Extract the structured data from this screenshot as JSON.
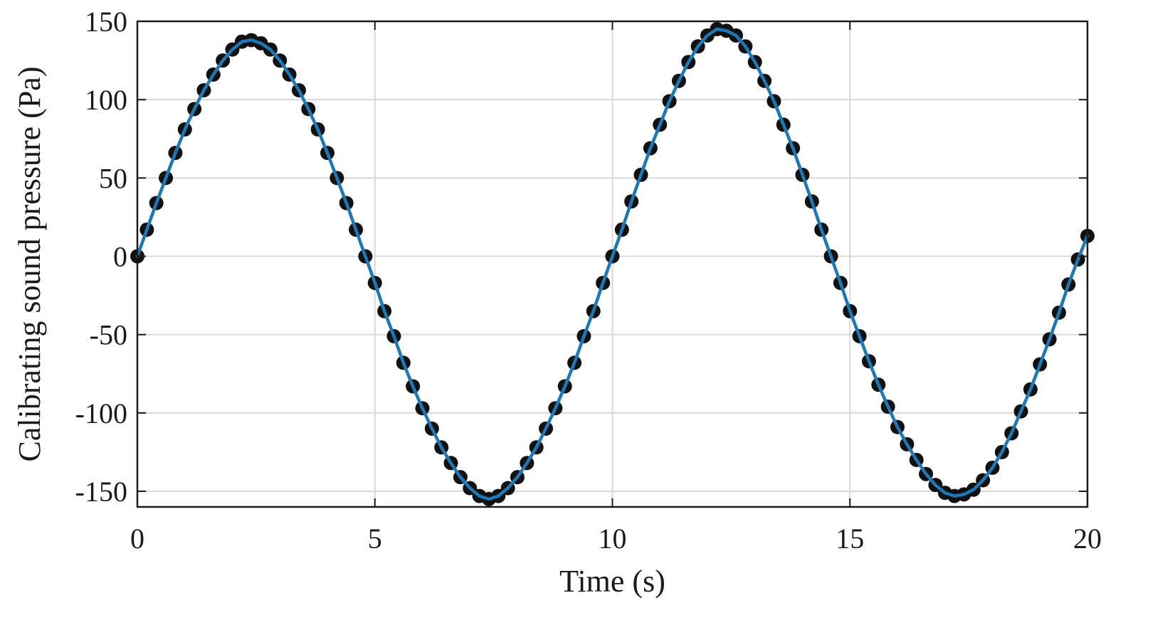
{
  "chart_data": {
    "type": "line",
    "title": "",
    "xlabel": "Time (s)",
    "ylabel": "Calibrating sound pressure (Pa)",
    "xlim": [
      0,
      20
    ],
    "ylim": [
      -160,
      150
    ],
    "xticks": [
      0,
      5,
      10,
      15,
      20
    ],
    "yticks": [
      150,
      100,
      50,
      0,
      -50,
      -100,
      -150
    ],
    "xtick_labels": [
      "0",
      "5",
      "10",
      "15",
      "20"
    ],
    "ytick_labels": [
      "150",
      "100",
      "50",
      "0",
      "-50",
      "-100",
      "-150"
    ],
    "grid": true,
    "legend": "none",
    "series": [
      {
        "style": "markers",
        "marker": "filled-circle",
        "color": "#111111",
        "x": [
          0,
          0.2,
          0.4,
          0.6,
          0.8,
          1.0,
          1.2,
          1.4,
          1.6,
          1.8,
          2.0,
          2.2,
          2.4,
          2.6,
          2.8,
          3.0,
          3.2,
          3.4,
          3.6,
          3.8,
          4.0,
          4.2,
          4.4,
          4.6,
          4.8,
          5.0,
          5.2,
          5.4,
          5.6,
          5.8,
          6.0,
          6.2,
          6.4,
          6.6,
          6.8,
          7.0,
          7.2,
          7.4,
          7.6,
          7.8,
          8.0,
          8.2,
          8.4,
          8.6,
          8.8,
          9.0,
          9.2,
          9.4,
          9.6,
          9.8,
          10.0,
          10.2,
          10.4,
          10.6,
          10.8,
          11.0,
          11.2,
          11.4,
          11.6,
          11.8,
          12.0,
          12.2,
          12.4,
          12.6,
          12.8,
          13.0,
          13.2,
          13.4,
          13.6,
          13.8,
          14.0,
          14.2,
          14.4,
          14.6,
          14.8,
          15.0,
          15.2,
          15.4,
          15.6,
          15.8,
          16.0,
          16.2,
          16.4,
          16.6,
          16.8,
          17.0,
          17.2,
          17.4,
          17.6,
          17.8,
          18.0,
          18.2,
          18.4,
          18.6,
          18.8,
          19.0,
          19.2,
          19.4,
          19.6,
          19.8,
          20.0
        ],
        "y": [
          0,
          17,
          34,
          50,
          66,
          81,
          94,
          106,
          116,
          125,
          132,
          137,
          138,
          136,
          132,
          125,
          116,
          106,
          94,
          81,
          66,
          50,
          34,
          17,
          0,
          -17,
          -35,
          -51,
          -68,
          -83,
          -97,
          -110,
          -122,
          -132,
          -141,
          -148,
          -153,
          -155,
          -153,
          -148,
          -141,
          -132,
          -122,
          -110,
          -97,
          -83,
          -68,
          -51,
          -35,
          -17,
          0,
          17,
          35,
          52,
          69,
          84,
          99,
          112,
          124,
          134,
          141,
          145,
          144,
          141,
          134,
          124,
          112,
          99,
          84,
          69,
          52,
          35,
          17,
          0,
          -17,
          -35,
          -51,
          -67,
          -82,
          -96,
          -109,
          -120,
          -130,
          -139,
          -146,
          -151,
          -153,
          -152,
          -149,
          -143,
          -135,
          -125,
          -113,
          -99,
          -85,
          -69,
          -53,
          -36,
          -18,
          -2,
          13
        ]
      },
      {
        "style": "line",
        "color": "#1f77b4",
        "x": [
          0,
          0.2,
          0.4,
          0.6,
          0.8,
          1.0,
          1.2,
          1.4,
          1.6,
          1.8,
          2.0,
          2.2,
          2.4,
          2.6,
          2.8,
          3.0,
          3.2,
          3.4,
          3.6,
          3.8,
          4.0,
          4.2,
          4.4,
          4.6,
          4.8,
          5.0,
          5.2,
          5.4,
          5.6,
          5.8,
          6.0,
          6.2,
          6.4,
          6.6,
          6.8,
          7.0,
          7.2,
          7.4,
          7.6,
          7.8,
          8.0,
          8.2,
          8.4,
          8.6,
          8.8,
          9.0,
          9.2,
          9.4,
          9.6,
          9.8,
          10.0,
          10.2,
          10.4,
          10.6,
          10.8,
          11.0,
          11.2,
          11.4,
          11.6,
          11.8,
          12.0,
          12.2,
          12.4,
          12.6,
          12.8,
          13.0,
          13.2,
          13.4,
          13.6,
          13.8,
          14.0,
          14.2,
          14.4,
          14.6,
          14.8,
          15.0,
          15.2,
          15.4,
          15.6,
          15.8,
          16.0,
          16.2,
          16.4,
          16.6,
          16.8,
          17.0,
          17.2,
          17.4,
          17.6,
          17.8,
          18.0,
          18.2,
          18.4,
          18.6,
          18.8,
          19.0,
          19.2,
          19.4,
          19.6,
          19.8,
          20.0
        ],
        "y": [
          0,
          17,
          34,
          50,
          66,
          81,
          94,
          106,
          116,
          125,
          132,
          137,
          138,
          136,
          132,
          125,
          116,
          106,
          94,
          81,
          66,
          50,
          34,
          17,
          0,
          -17,
          -35,
          -51,
          -68,
          -83,
          -97,
          -110,
          -122,
          -132,
          -141,
          -148,
          -153,
          -155,
          -153,
          -148,
          -141,
          -132,
          -122,
          -110,
          -97,
          -83,
          -68,
          -51,
          -35,
          -17,
          0,
          17,
          35,
          52,
          69,
          84,
          99,
          112,
          124,
          134,
          141,
          145,
          144,
          141,
          134,
          124,
          112,
          99,
          84,
          69,
          52,
          35,
          17,
          0,
          -17,
          -35,
          -51,
          -67,
          -82,
          -96,
          -109,
          -120,
          -130,
          -139,
          -146,
          -151,
          -153,
          -152,
          -149,
          -143,
          -135,
          -125,
          -113,
          -99,
          -85,
          -69,
          -53,
          -36,
          -18,
          -2,
          13
        ]
      }
    ]
  }
}
